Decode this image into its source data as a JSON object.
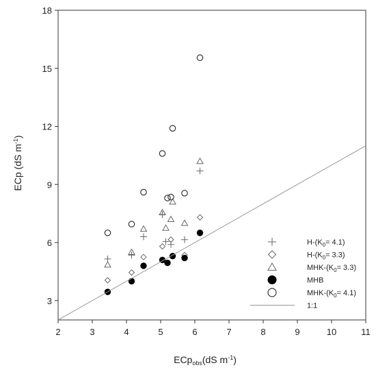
{
  "chart_data": {
    "type": "scatter",
    "title": "",
    "xlabel_main": "ECp",
    "xlabel_sub": "obs",
    "xlabel_unit": "(dS m",
    "xlabel_exp": "-1",
    "xlabel_close": ")",
    "ylabel_main": "ECp  (dS m",
    "ylabel_exp": "-1",
    "ylabel_close": ")",
    "xlim": [
      2,
      11
    ],
    "ylim": [
      2,
      18
    ],
    "x_ticks": [
      2,
      3,
      4,
      5,
      6,
      7,
      8,
      9,
      10,
      11
    ],
    "y_ticks": [
      3,
      6,
      9,
      12,
      15,
      18
    ],
    "grid": false,
    "legend_position": "bottom-right",
    "series": [
      {
        "name": "H-(K0= 4.1)",
        "legend_prefix": "H-(K",
        "legend_sub": "0",
        "legend_suffix": "= 4.1)",
        "marker": "plus",
        "points": [
          [
            3.45,
            5.15
          ],
          [
            4.15,
            5.35
          ],
          [
            4.5,
            6.3
          ],
          [
            5.05,
            7.45
          ],
          [
            5.15,
            6.05
          ],
          [
            5.3,
            5.9
          ],
          [
            5.7,
            6.15
          ],
          [
            6.15,
            9.7
          ]
        ]
      },
      {
        "name": "H-(K0= 3.3)",
        "legend_prefix": "H-(K",
        "legend_sub": "0",
        "legend_suffix": "= 3.3)",
        "marker": "diamond",
        "points": [
          [
            3.45,
            4.05
          ],
          [
            4.15,
            4.45
          ],
          [
            4.5,
            5.25
          ],
          [
            5.05,
            5.8
          ],
          [
            5.3,
            6.15
          ],
          [
            5.7,
            5.35
          ],
          [
            6.15,
            7.3
          ]
        ]
      },
      {
        "name": "MHK-(K0= 3.3)",
        "legend_prefix": "MHK-(K",
        "legend_sub": "0",
        "legend_suffix": "= 3.3)",
        "marker": "triangle",
        "points": [
          [
            3.45,
            4.85
          ],
          [
            4.15,
            5.5
          ],
          [
            4.5,
            6.7
          ],
          [
            5.05,
            7.55
          ],
          [
            5.15,
            6.75
          ],
          [
            5.3,
            7.2
          ],
          [
            5.35,
            8.1
          ],
          [
            5.7,
            7.0
          ],
          [
            6.15,
            10.2
          ]
        ]
      },
      {
        "name": "MHB",
        "legend_prefix": "MHB",
        "legend_sub": "",
        "legend_suffix": "",
        "marker": "filled-circle",
        "points": [
          [
            3.45,
            3.45
          ],
          [
            4.15,
            4.0
          ],
          [
            4.5,
            4.8
          ],
          [
            5.05,
            5.1
          ],
          [
            5.2,
            4.95
          ],
          [
            5.35,
            5.3
          ],
          [
            5.7,
            5.2
          ],
          [
            6.15,
            6.5
          ]
        ]
      },
      {
        "name": "MHK-(K0= 4.1)",
        "legend_prefix": "MHK-(K",
        "legend_sub": "0",
        "legend_suffix": "= 4.1)",
        "marker": "open-circle",
        "points": [
          [
            3.45,
            6.5
          ],
          [
            4.15,
            6.95
          ],
          [
            4.5,
            8.6
          ],
          [
            5.05,
            10.6
          ],
          [
            5.2,
            8.3
          ],
          [
            5.3,
            8.35
          ],
          [
            5.35,
            11.9
          ],
          [
            5.7,
            8.55
          ],
          [
            6.15,
            15.55
          ]
        ]
      },
      {
        "name": "1:1",
        "legend_prefix": "1:1",
        "legend_sub": "",
        "legend_suffix": "",
        "marker": "line",
        "points": [
          [
            2,
            2
          ],
          [
            11,
            11
          ]
        ]
      }
    ]
  }
}
